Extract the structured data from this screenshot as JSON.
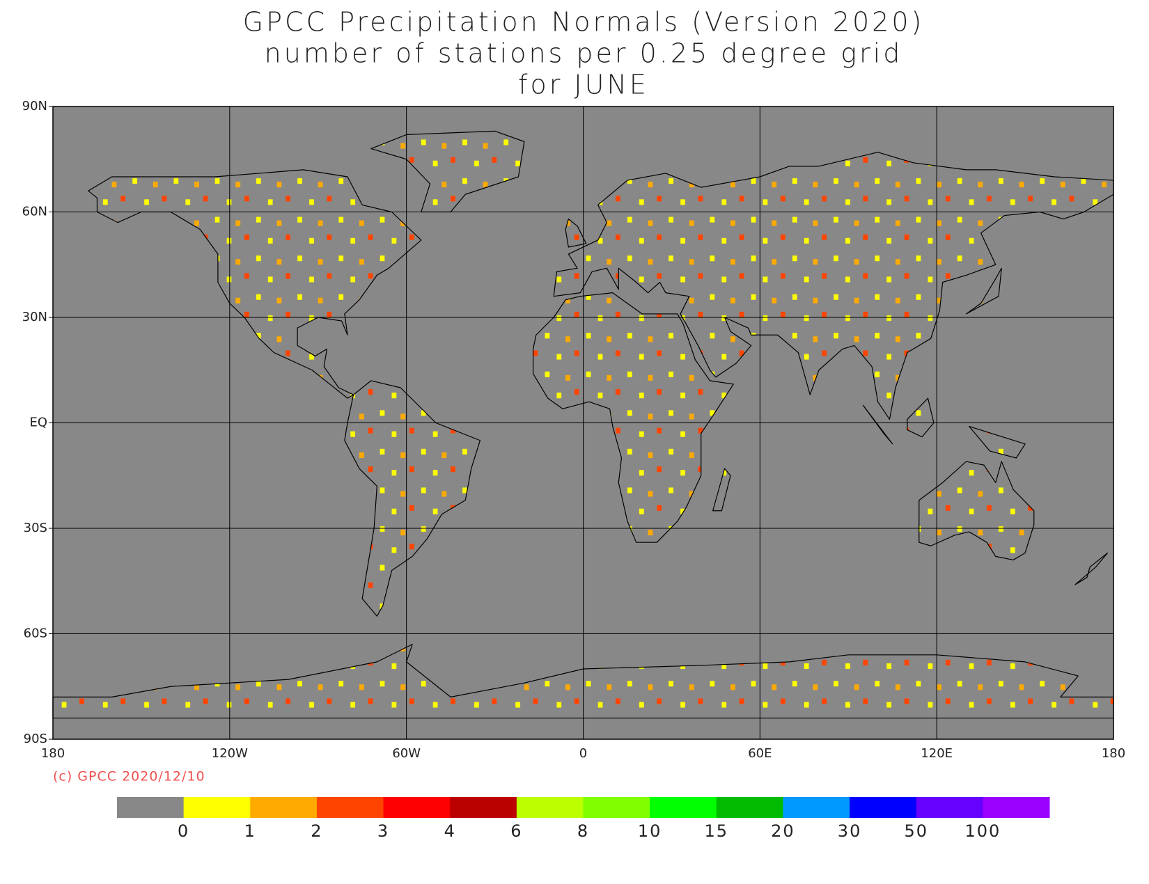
{
  "title_lines": [
    "GPCC Precipitation Normals (Version 2020)",
    "number of stations per 0.25 degree grid",
    "for JUNE"
  ],
  "copyright": "(c) GPCC 2020/12/10",
  "map": {
    "xlim": [
      -180,
      180
    ],
    "ylim": [
      -90,
      90
    ],
    "xticks": [
      {
        "value": -180,
        "label": "180"
      },
      {
        "value": -120,
        "label": "120W"
      },
      {
        "value": -60,
        "label": "60W"
      },
      0,
      {
        "value": 60,
        "label": "60E"
      },
      {
        "value": 120,
        "label": "120E"
      },
      180
    ],
    "yticks": [
      {
        "value": 90,
        "label": "90N"
      },
      {
        "value": 60,
        "label": "60N"
      },
      {
        "value": 30,
        "label": "30N"
      },
      {
        "value": 0,
        "label": "EQ"
      },
      {
        "value": -30,
        "label": "30S"
      },
      {
        "value": -60,
        "label": "60S"
      },
      {
        "value": -90,
        "label": "90S"
      }
    ],
    "background": "#888888",
    "grid": true
  },
  "colorbar": {
    "colors": [
      "#888888",
      "#ffff00",
      "#ffaa00",
      "#ff4400",
      "#ff0000",
      "#bb0000",
      "#bbff00",
      "#80ff00",
      "#00ff00",
      "#00bb00",
      "#0099ff",
      "#0000ff",
      "#6600ff",
      "#9900ff"
    ],
    "labels": [
      0,
      1,
      2,
      3,
      4,
      6,
      8,
      10,
      15,
      20,
      30,
      50,
      100
    ]
  }
}
